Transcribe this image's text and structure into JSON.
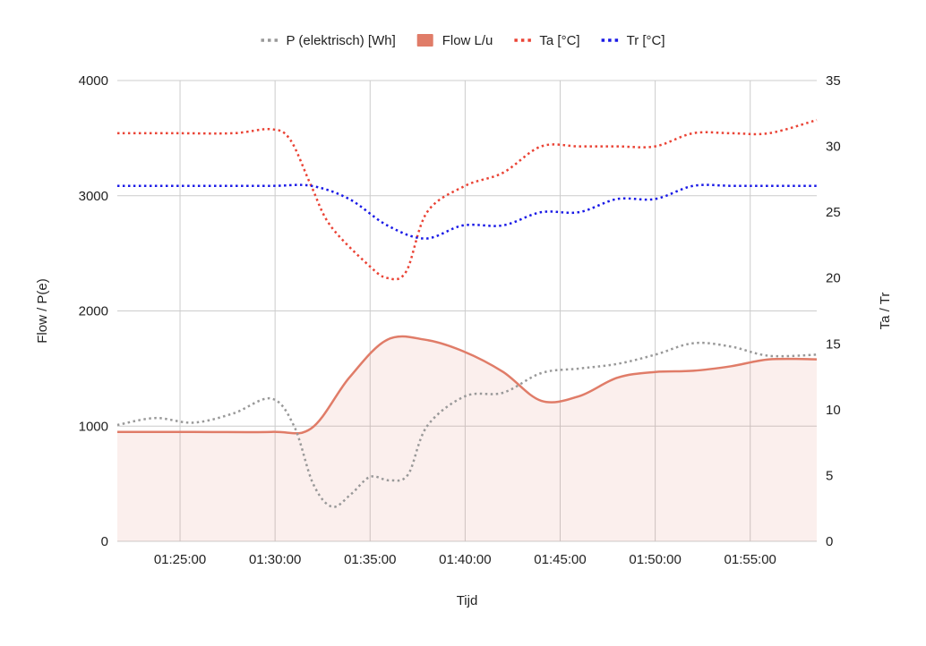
{
  "chart_data": {
    "type": "line",
    "title": "",
    "xlabel": "Tijd",
    "ylabel_left": "Flow / P(e)",
    "ylabel_right": "Ta / Tr",
    "x_ticks": [
      "01:25:00",
      "01:30:00",
      "01:35:00",
      "01:40:00",
      "01:45:00",
      "01:50:00",
      "01:55:00"
    ],
    "x_range_minutes": [
      81.7,
      118.5
    ],
    "y_left": {
      "min": 0,
      "max": 4000,
      "ticks": [
        "0",
        "1000",
        "2000",
        "3000",
        "4000"
      ]
    },
    "y_right": {
      "min": 0,
      "max": 35,
      "ticks": [
        "0",
        "5",
        "10",
        "15",
        "20",
        "25",
        "30",
        "35"
      ]
    },
    "grid": true,
    "legend_position": "top",
    "series": [
      {
        "name": "P (elektrisch) [Wh]",
        "axis": "left",
        "style": "dotted",
        "color": "#999999",
        "x": [
          81.7,
          83.7,
          85.7,
          87.8,
          89.8,
          91.0,
          92.0,
          93.0,
          94.0,
          95.0,
          96.0,
          97.0,
          98.0,
          100.0,
          102.0,
          104.0,
          106.0,
          108.0,
          110.0,
          112.0,
          114.0,
          116.0,
          118.5
        ],
        "values": [
          1010,
          1070,
          1030,
          1110,
          1240,
          1000,
          500,
          300,
          410,
          560,
          530,
          580,
          1000,
          1260,
          1290,
          1460,
          1500,
          1540,
          1620,
          1720,
          1690,
          1610,
          1620
        ]
      },
      {
        "name": "Flow L/u",
        "axis": "left",
        "style": "area",
        "color": "#e07c68",
        "x": [
          81.7,
          85.7,
          89.8,
          91.9,
          93.9,
          95.9,
          97.9,
          99.9,
          102.0,
          104.0,
          106.0,
          108.0,
          110.0,
          112.0,
          114.0,
          116.0,
          118.5
        ],
        "values": [
          950,
          950,
          950,
          980,
          1420,
          1750,
          1750,
          1650,
          1470,
          1220,
          1260,
          1420,
          1470,
          1480,
          1520,
          1580,
          1580
        ]
      },
      {
        "name": "Ta [°C]",
        "axis": "right",
        "style": "dotted",
        "color": "#ea4335",
        "x": [
          81.7,
          84.7,
          87.8,
          89.8,
          90.8,
          91.9,
          92.9,
          94.9,
          95.9,
          96.9,
          98.0,
          100.0,
          102.0,
          104.0,
          106.0,
          108.0,
          110.0,
          112.0,
          114.0,
          116.0,
          118.5
        ],
        "values": [
          31,
          31,
          31,
          31.3,
          30.5,
          27,
          24,
          21,
          20,
          20.5,
          25,
          27,
          28,
          30,
          30,
          30,
          30,
          31,
          31,
          31,
          32
        ]
      },
      {
        "name": "Tr [°C]",
        "axis": "right",
        "style": "dotted",
        "color": "#1a1ae6",
        "x": [
          81.7,
          85.7,
          89.8,
          91.9,
          93.9,
          95.9,
          97.9,
          99.9,
          102.0,
          104.0,
          106.0,
          108.0,
          110.0,
          112.0,
          114.0,
          116.0,
          118.5
        ],
        "values": [
          27,
          27,
          27,
          27,
          26,
          24,
          23,
          24,
          24,
          25,
          25,
          26,
          26,
          27,
          27,
          27,
          27
        ]
      }
    ]
  }
}
